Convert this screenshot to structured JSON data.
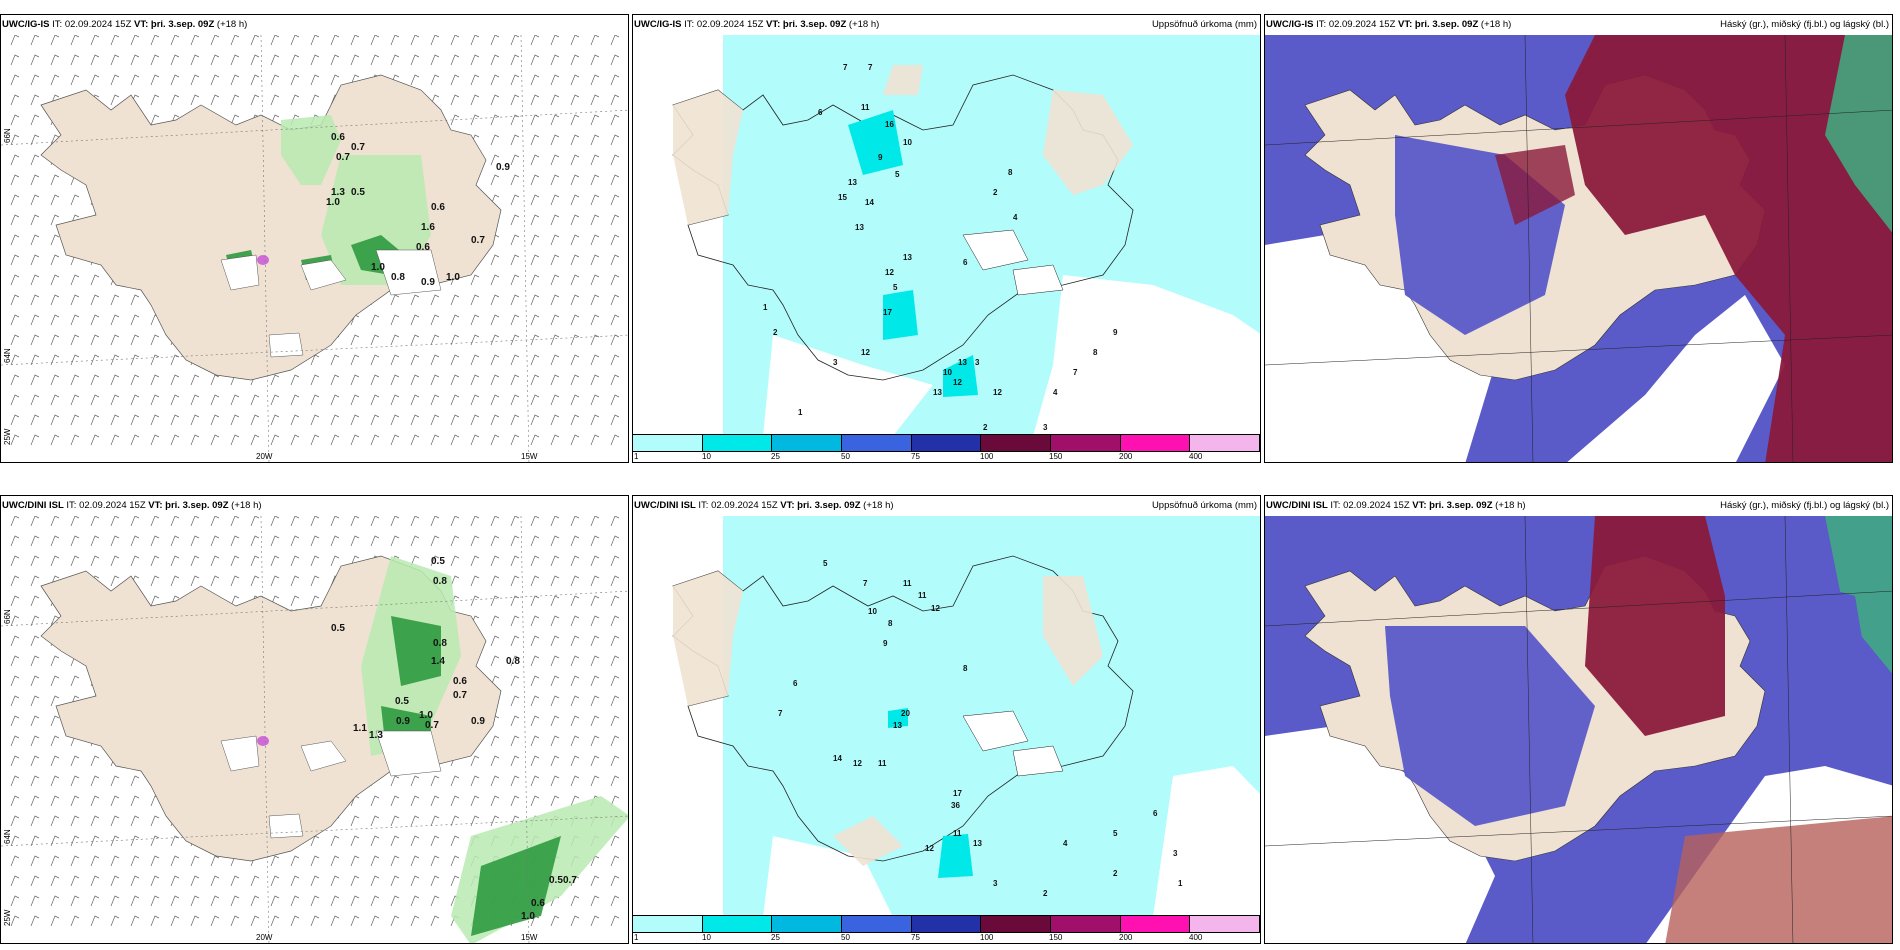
{
  "rows": [
    {
      "model": "UWC/IG-IS",
      "it_label": "IT:",
      "it_value": "02.09.2024 15Z",
      "vt_label": "VT:",
      "vt_value": "þri. 3.sep. 09Z",
      "lead": "(+18 h)",
      "lat_labels": [
        "66N",
        "64N",
        "25W"
      ],
      "lon_labels": [
        "20W",
        "15W"
      ],
      "precip_values": [
        "7",
        "7",
        "6",
        "11",
        "16",
        "10",
        "9",
        "5",
        "13",
        "15",
        "14",
        "13",
        "13",
        "12",
        "17",
        "12",
        "12",
        "13",
        "10",
        "13",
        "12",
        "3",
        "2",
        "8",
        "4",
        "6",
        "5",
        "3",
        "2",
        "1",
        "1",
        "2",
        "3",
        "4",
        "7",
        "8",
        "9"
      ],
      "wind_values": [
        "0.6",
        "0.7",
        "0.7",
        "1.3",
        "1.0",
        "0.5",
        "0.9",
        "0.6",
        "1.6",
        "0.7",
        "0.6",
        "1.0",
        "0.8",
        "0.9",
        "1.0"
      ]
    },
    {
      "model": "UWC/DINI ISL",
      "it_label": "IT:",
      "it_value": "02.09.2024 15Z",
      "vt_label": "VT:",
      "vt_value": "þri. 3.sep. 09Z",
      "lead": "(+18 h)",
      "lat_labels": [
        "66N",
        "64N",
        "25W"
      ],
      "lon_labels": [
        "20W",
        "15W"
      ],
      "precip_values": [
        "5",
        "7",
        "11",
        "12",
        "10",
        "11",
        "8",
        "9",
        "7",
        "6",
        "13",
        "20",
        "14",
        "12",
        "11",
        "17",
        "36",
        "13",
        "12",
        "11",
        "3",
        "2",
        "4",
        "5",
        "6",
        "3",
        "1",
        "2",
        "8"
      ],
      "wind_values": [
        "0.5",
        "0.8",
        "0.8",
        "0.5",
        "1.4",
        "0.6",
        "0.7",
        "0.5",
        "1.0",
        "0.9",
        "1.3",
        "0.9",
        "0.7",
        "1.1",
        "0.8",
        "0.6",
        "1.0",
        "0.5",
        "0.7"
      ]
    }
  ],
  "precip_title": "Uppsöfnuð úrkoma (mm)",
  "cloud_title": "Háský (gr.), miðský (fj.bl.) og lágský (bl.)",
  "colorbar": {
    "ticks": [
      "1",
      "10",
      "25",
      "50",
      "75",
      "100",
      "150",
      "200",
      "400"
    ],
    "colors": [
      "#b3fcfc",
      "#00e8e8",
      "#00b8e0",
      "#3a63e0",
      "#2331a8",
      "#6a0a3a",
      "#a0106a",
      "#ff10b0",
      "#f4b4ec"
    ]
  },
  "colors": {
    "land": "#efe2d2",
    "sea_precip": "#b3fcfc",
    "wind_green": "#b8eab0",
    "wind_dark": "#2f9a40",
    "high_cloud": "#5a5ac8",
    "mid_cloud": "#8a1a3c"
  }
}
